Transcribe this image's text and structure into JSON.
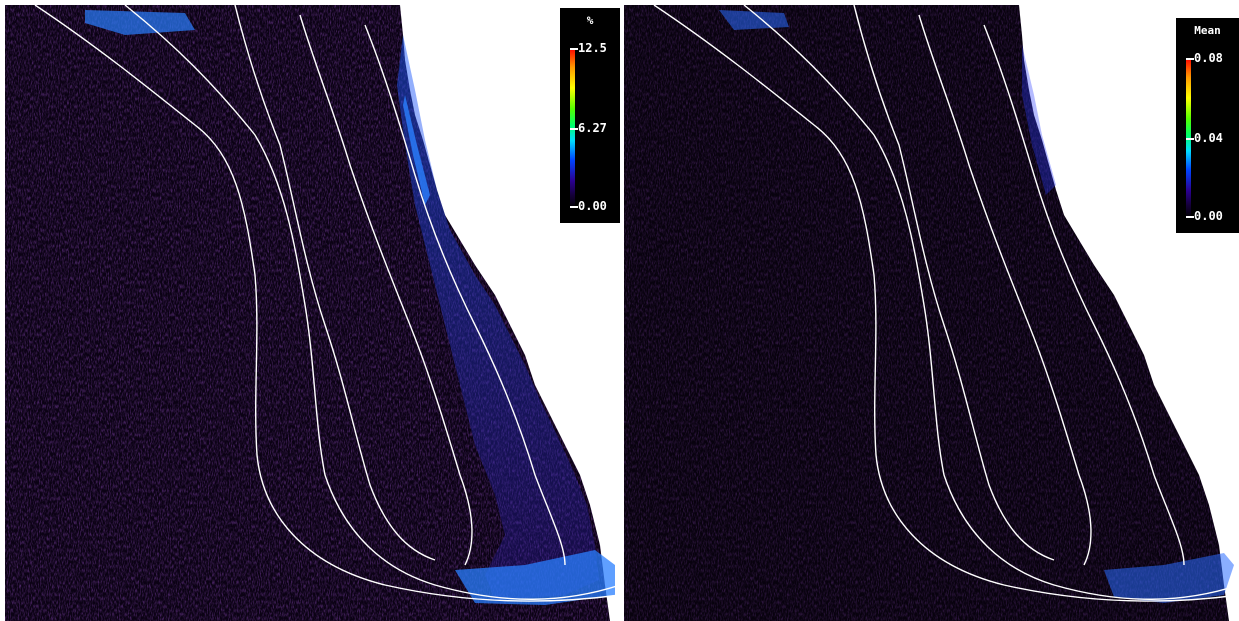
{
  "left_panel": {
    "legend": {
      "title": "%",
      "max": "12.5",
      "mid": "6.27",
      "min": "0.00"
    }
  },
  "right_panel": {
    "legend": {
      "title": "Mean",
      "max": "0.08",
      "mid": "0.04",
      "min": "0.00"
    }
  },
  "colors": {
    "background": "#0a0210",
    "trajectory": "#3d1570",
    "contour": "#ffffff",
    "land": "#ffffff",
    "high_density": "#2a6bff"
  }
}
